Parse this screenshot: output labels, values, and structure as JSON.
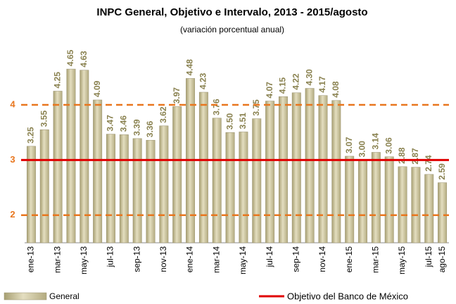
{
  "chart_data": {
    "type": "bar",
    "title": "INPC General, Objetivo e Intervalo, 2013 - 2015/agosto",
    "subtitle": "(variación porcentual anual)",
    "categories": [
      "ene-13",
      null,
      "mar-13",
      null,
      "may-13",
      null,
      "jul-13",
      null,
      "sep-13",
      null,
      "nov-13",
      null,
      "ene-14",
      null,
      "mar-14",
      null,
      "may-14",
      null,
      "jul-14",
      null,
      "sep-14",
      null,
      "nov-14",
      null,
      "ene-15",
      null,
      "mar-15",
      null,
      "may-15",
      null,
      "jul-15",
      "ago-15"
    ],
    "series": [
      {
        "name": "General",
        "color": "#cdc5a0",
        "values": [
          3.25,
          3.55,
          4.25,
          4.65,
          4.63,
          4.09,
          3.47,
          3.46,
          3.39,
          3.36,
          3.62,
          3.97,
          4.48,
          4.23,
          3.76,
          3.5,
          3.51,
          3.75,
          4.07,
          4.15,
          4.22,
          4.3,
          4.17,
          4.08,
          3.07,
          3.0,
          3.14,
          3.06,
          2.88,
          2.87,
          2.74,
          2.59
        ],
        "value_labels": [
          "3.25",
          "3.55",
          "4.25",
          "4.65",
          "4.63",
          "4.09",
          "3.47",
          "3.46",
          "3.39",
          "3.36",
          "3.62",
          "3.97",
          "4.48",
          "4.23",
          "3.76",
          "3.50",
          "3.51",
          "3.75",
          "4.07",
          "4.15",
          "4.22",
          "4.30",
          "4.17",
          "4.08",
          "3.07",
          "3.00",
          "3.14",
          "3.06",
          "2.88",
          "2.87",
          "2.74",
          "2.59"
        ]
      }
    ],
    "target": {
      "name": "Objetivo del Banco de México",
      "value": 3,
      "color": "#e00000"
    },
    "interval": {
      "values": [
        2,
        4
      ],
      "color": "#e8761e"
    },
    "ylim": [
      1.5,
      5.2
    ],
    "yticks": [
      2,
      3,
      4
    ],
    "label_color": "#8a8250"
  }
}
